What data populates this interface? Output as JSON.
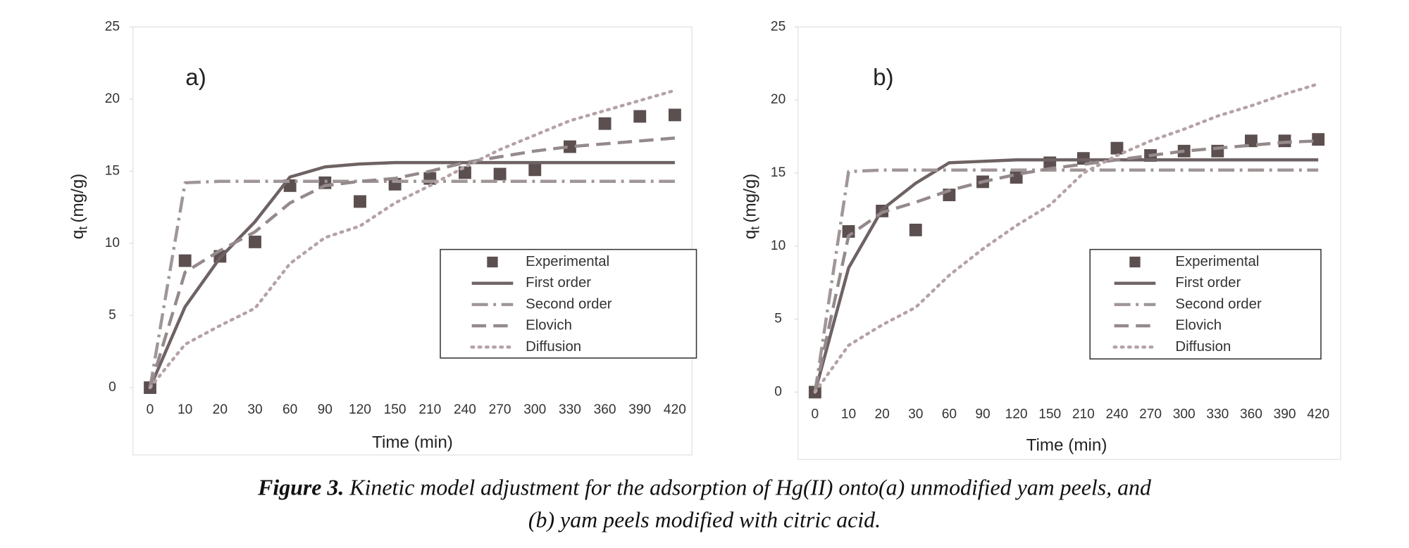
{
  "chart_data": [
    {
      "type": "line",
      "panel_label": "a)",
      "categories": [
        "0",
        "10",
        "20",
        "30",
        "60",
        "90",
        "120",
        "150",
        "210",
        "240",
        "270",
        "300",
        "330",
        "360",
        "390",
        "420"
      ],
      "xlabel": "Time (min)",
      "ylabel": {
        "main": "q",
        "sub": "t",
        "rest": "(mg/g)"
      },
      "ylim": [
        0,
        25
      ],
      "yticks": [
        0,
        5,
        10,
        15,
        20,
        25
      ],
      "series": [
        {
          "name": "Experimental",
          "color": "#5b4f50",
          "style": "markers",
          "values": [
            0,
            8.8,
            9.1,
            10.1,
            14.0,
            14.2,
            12.9,
            14.1,
            14.5,
            14.9,
            14.8,
            15.1,
            16.7,
            18.3,
            18.8,
            18.9
          ]
        },
        {
          "name": "First order",
          "color": "#6e6263",
          "style": "solid",
          "values": [
            0,
            5.6,
            9.0,
            11.5,
            14.6,
            15.3,
            15.5,
            15.6,
            15.6,
            15.6,
            15.6,
            15.6,
            15.6,
            15.6,
            15.6,
            15.6
          ]
        },
        {
          "name": "Second order",
          "color": "#a09697",
          "style": "dashdot",
          "values": [
            0,
            14.2,
            14.3,
            14.3,
            14.3,
            14.3,
            14.3,
            14.3,
            14.3,
            14.3,
            14.3,
            14.3,
            14.3,
            14.3,
            14.3,
            14.3
          ]
        },
        {
          "name": "Elovich",
          "color": "#958a8b",
          "style": "dash",
          "values": [
            0,
            8.0,
            9.5,
            10.8,
            12.8,
            14.0,
            14.3,
            14.5,
            15.0,
            15.6,
            16.0,
            16.4,
            16.7,
            16.9,
            17.1,
            17.3
          ]
        },
        {
          "name": "Diffusion",
          "color": "#b5a2a6",
          "style": "dot",
          "values": [
            0,
            3.0,
            4.3,
            5.5,
            8.6,
            10.4,
            11.2,
            12.8,
            14.0,
            15.3,
            16.5,
            17.5,
            18.5,
            19.2,
            19.9,
            20.6
          ]
        }
      ]
    },
    {
      "type": "line",
      "panel_label": "b)",
      "categories": [
        "0",
        "10",
        "20",
        "30",
        "60",
        "90",
        "120",
        "150",
        "210",
        "240",
        "270",
        "300",
        "330",
        "360",
        "390",
        "420"
      ],
      "xlabel": "Time (min)",
      "ylabel": {
        "main": "q",
        "sub": "t",
        "rest": "(mg/g)"
      },
      "ylim": [
        0,
        25
      ],
      "yticks": [
        0,
        5,
        10,
        15,
        20,
        25
      ],
      "series": [
        {
          "name": "Experimental",
          "color": "#5b4f50",
          "style": "markers",
          "values": [
            0,
            11.0,
            12.4,
            11.1,
            13.5,
            14.4,
            14.7,
            15.7,
            16.0,
            16.7,
            16.2,
            16.5,
            16.5,
            17.2,
            17.2,
            17.3
          ]
        },
        {
          "name": "First order",
          "color": "#6e6263",
          "style": "solid",
          "values": [
            0,
            8.5,
            12.5,
            14.3,
            15.7,
            15.8,
            15.9,
            15.9,
            15.9,
            15.9,
            15.9,
            15.9,
            15.9,
            15.9,
            15.9,
            15.9
          ]
        },
        {
          "name": "Second order",
          "color": "#a09697",
          "style": "dashdot",
          "values": [
            0,
            15.1,
            15.2,
            15.2,
            15.2,
            15.2,
            15.2,
            15.2,
            15.2,
            15.2,
            15.2,
            15.2,
            15.2,
            15.2,
            15.2,
            15.2
          ]
        },
        {
          "name": "Elovich",
          "color": "#958a8b",
          "style": "dash",
          "values": [
            0,
            10.7,
            12.3,
            13.0,
            13.8,
            14.4,
            14.9,
            15.3,
            15.6,
            15.9,
            16.2,
            16.5,
            16.7,
            16.9,
            17.1,
            17.2
          ]
        },
        {
          "name": "Diffusion",
          "color": "#b5a2a6",
          "style": "dot",
          "values": [
            0,
            3.2,
            4.6,
            5.8,
            8.0,
            9.8,
            11.4,
            12.8,
            15.0,
            16.2,
            17.2,
            18.0,
            18.9,
            19.6,
            20.4,
            21.1
          ]
        }
      ]
    }
  ],
  "caption": {
    "label": "Figure 3.",
    "lines": [
      "Kinetic model adjustment for the adsorption of Hg(II) onto(a) unmodified yam peels, and",
      "(b) yam peels modified with citric acid."
    ]
  }
}
